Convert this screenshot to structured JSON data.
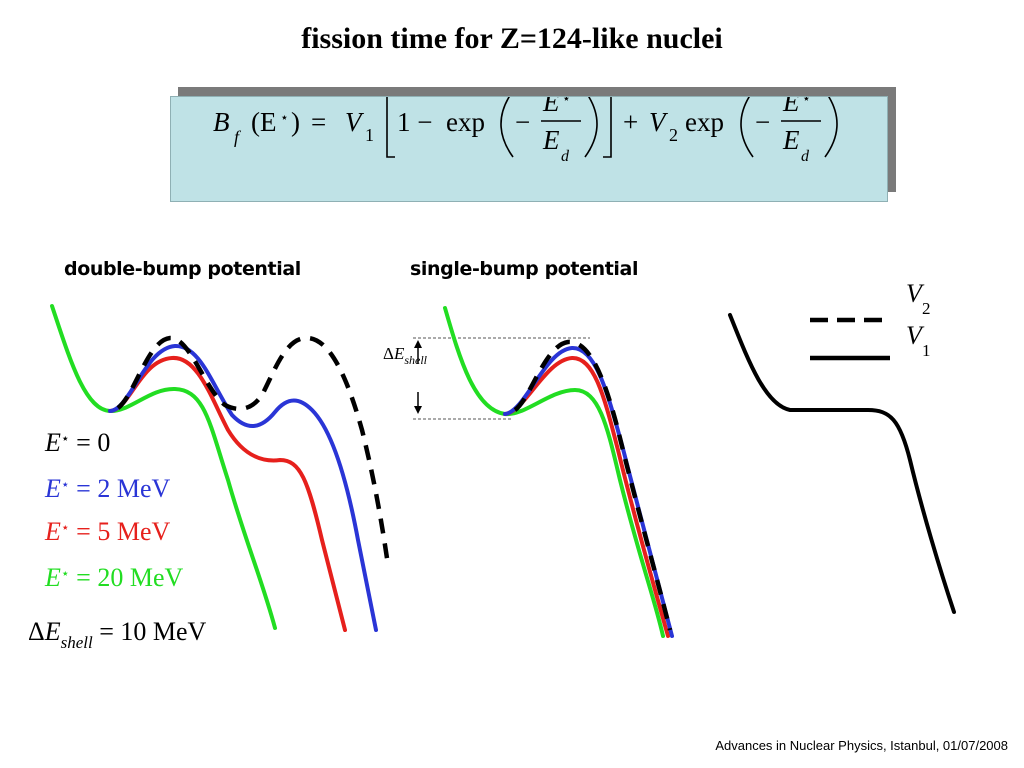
{
  "title": "fission time for Z=124-like nuclei",
  "formula": {
    "lhs": "B",
    "lhs_sub": "f",
    "arg": "(E",
    "star": "⋆",
    "close": ")",
    "eq": "=",
    "V": "V",
    "one": "1",
    "two": "2",
    "one_minus": "1 −",
    "exp": "exp",
    "minus": "−",
    "E": "E",
    "d": "d",
    "plus": "+"
  },
  "headings": {
    "double": "double-bump potential",
    "single": "single-bump potential"
  },
  "legend": {
    "e0": {
      "label": "E",
      "star": "⋆",
      "value": "= 0",
      "color": "#000000"
    },
    "e2": {
      "label": "E",
      "star": "⋆",
      "value": "= 2 MeV",
      "color": "#2a35d6"
    },
    "e5": {
      "label": "E",
      "star": "⋆",
      "value": "= 5 MeV",
      "color": "#e6201c"
    },
    "e20": {
      "label": "E",
      "star": "⋆",
      "value": "= 20 MeV",
      "color": "#22dd22"
    },
    "shell": {
      "delta": "Δ",
      "label": "E",
      "sub": "shell",
      "value": "= 10 MeV"
    }
  },
  "single_annotation": {
    "delta": "Δ",
    "label": "E",
    "sub": "shell"
  },
  "schematic": {
    "v2": {
      "label": "V",
      "sub": "2"
    },
    "v1": {
      "label": "V",
      "sub": "1"
    }
  },
  "colors": {
    "black": "#000000",
    "blue": "#2a35d6",
    "red": "#e6201c",
    "green": "#22dd22",
    "formula_bg": "#bfe2e6"
  },
  "footer": "Advances in Nuclear Physics, Istanbul, 01/07/2008"
}
